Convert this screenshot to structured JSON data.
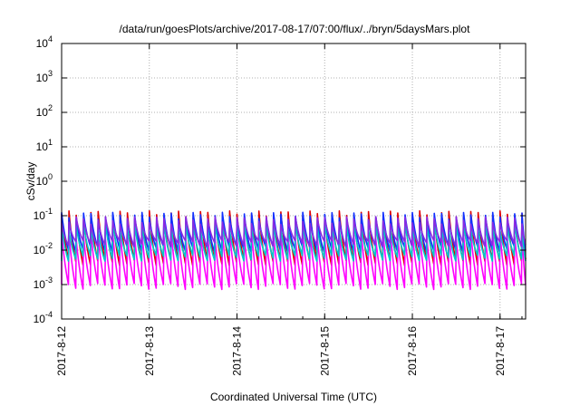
{
  "chart_data": {
    "type": "line",
    "title": "/data/run/goesPlots/archive/2017-08-17/07:00/flux/../bryn/5daysMars.plot",
    "xlabel": "Coordinated Universal Time (UTC)",
    "ylabel": "cSv/day",
    "y_scale": "log",
    "ylim": [
      0.0001,
      10000
    ],
    "y_ticks": [
      {
        "base": "10",
        "exp": "-4",
        "value": 0.0001
      },
      {
        "base": "10",
        "exp": "-3",
        "value": 0.001
      },
      {
        "base": "10",
        "exp": "-2",
        "value": 0.01
      },
      {
        "base": "10",
        "exp": "-1",
        "value": 0.1
      },
      {
        "base": "10",
        "exp": "0",
        "value": 1
      },
      {
        "base": "10",
        "exp": "1",
        "value": 10
      },
      {
        "base": "10",
        "exp": "2",
        "value": 100
      },
      {
        "base": "10",
        "exp": "3",
        "value": 1000
      },
      {
        "base": "10",
        "exp": "4",
        "value": 10000
      }
    ],
    "x_ticks": [
      "2017-8-12",
      "2017-8-13",
      "2017-8-14",
      "2017-8-15",
      "2017-8-16",
      "2017-8-17"
    ],
    "xlim": [
      "2017-08-12T00:00",
      "2017-08-17T07:00"
    ],
    "grid": true,
    "legend": "none",
    "sawtooth_period_hours": 2,
    "series": [
      {
        "color": "#e00000",
        "peak": 0.11,
        "trough": 0.0045
      },
      {
        "color": "#ff00ff",
        "peak": 0.028,
        "trough": 0.0009
      },
      {
        "color": "#1030ff",
        "peak": 0.1,
        "trough": 0.011
      },
      {
        "color": "#00c8c8",
        "peak": 0.05,
        "trough": 0.006
      },
      {
        "color": "#8a2be2",
        "peak": 0.075,
        "trough": 0.016
      }
    ]
  }
}
